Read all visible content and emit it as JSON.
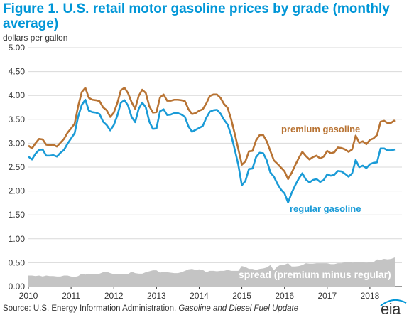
{
  "header": {
    "title": "Figure 1. U.S. retail motor gasoline prices by grade (monthly average)",
    "units": "dollars per gallon"
  },
  "footer": {
    "source_prefix": "Source: U.S. Energy Information Administration, ",
    "source_italic": "Gasoline and Diesel Fuel Update",
    "logo_text": "eia"
  },
  "colors": {
    "title": "#0096d7",
    "premium": "#b87333",
    "regular": "#1a9bd7",
    "spread": "#c4c4c4",
    "grid": "#d9d9d9"
  },
  "chart_data": {
    "type": "line",
    "x_start": "2010-01",
    "xlim": [
      "2010-01",
      "2018-10"
    ],
    "ylim": [
      0,
      5
    ],
    "yticks": [
      "0.00",
      "0.50",
      "1.00",
      "1.50",
      "2.00",
      "2.50",
      "3.00",
      "3.50",
      "4.00",
      "4.50",
      "5.00"
    ],
    "xticks": [
      "2010",
      "2011",
      "2012",
      "2013",
      "2014",
      "2015",
      "2016",
      "2017",
      "2018"
    ],
    "grid": true,
    "legend": "inline labels",
    "annotations": {
      "premium": "premium gasoline",
      "regular": "regular gasoline",
      "spread": "spread (premium minus regular)"
    },
    "series": [
      {
        "name": "premium gasoline",
        "values": [
          2.95,
          2.89,
          3.0,
          3.09,
          3.08,
          2.97,
          2.96,
          2.97,
          2.93,
          3.01,
          3.09,
          3.22,
          3.31,
          3.41,
          3.78,
          4.07,
          4.16,
          3.95,
          3.91,
          3.9,
          3.88,
          3.75,
          3.69,
          3.55,
          3.64,
          3.84,
          4.11,
          4.16,
          4.05,
          3.86,
          3.72,
          3.99,
          4.12,
          4.05,
          3.77,
          3.64,
          3.65,
          3.96,
          4.02,
          3.89,
          3.89,
          3.91,
          3.91,
          3.9,
          3.88,
          3.71,
          3.61,
          3.63,
          3.68,
          3.71,
          3.83,
          3.99,
          4.02,
          4.02,
          3.95,
          3.82,
          3.74,
          3.5,
          3.2,
          2.88,
          2.55,
          2.62,
          2.83,
          2.84,
          3.06,
          3.17,
          3.17,
          3.04,
          2.84,
          2.64,
          2.57,
          2.49,
          2.41,
          2.25,
          2.38,
          2.54,
          2.69,
          2.82,
          2.73,
          2.66,
          2.71,
          2.74,
          2.68,
          2.72,
          2.84,
          2.79,
          2.81,
          2.91,
          2.9,
          2.87,
          2.82,
          2.87,
          3.16,
          3.01,
          3.04,
          2.98,
          3.07,
          3.1,
          3.17,
          3.45,
          3.47,
          3.42,
          3.43,
          3.48
        ]
      },
      {
        "name": "regular gasoline",
        "values": [
          2.72,
          2.66,
          2.78,
          2.86,
          2.87,
          2.74,
          2.74,
          2.75,
          2.72,
          2.8,
          2.86,
          2.99,
          3.1,
          3.21,
          3.56,
          3.8,
          3.91,
          3.68,
          3.65,
          3.64,
          3.61,
          3.45,
          3.38,
          3.27,
          3.38,
          3.58,
          3.85,
          3.9,
          3.79,
          3.55,
          3.44,
          3.72,
          3.85,
          3.75,
          3.45,
          3.3,
          3.31,
          3.67,
          3.71,
          3.59,
          3.6,
          3.63,
          3.63,
          3.6,
          3.55,
          3.35,
          3.24,
          3.28,
          3.32,
          3.36,
          3.53,
          3.66,
          3.69,
          3.7,
          3.62,
          3.49,
          3.39,
          3.17,
          2.87,
          2.55,
          2.12,
          2.21,
          2.46,
          2.47,
          2.71,
          2.8,
          2.79,
          2.64,
          2.39,
          2.3,
          2.15,
          2.03,
          1.95,
          1.76,
          1.96,
          2.12,
          2.26,
          2.37,
          2.24,
          2.18,
          2.23,
          2.25,
          2.19,
          2.23,
          2.35,
          2.32,
          2.34,
          2.42,
          2.41,
          2.36,
          2.3,
          2.37,
          2.65,
          2.5,
          2.53,
          2.48,
          2.56,
          2.59,
          2.6,
          2.89,
          2.89,
          2.85,
          2.85,
          2.87
        ]
      },
      {
        "name": "spread (premium minus regular)",
        "values": [
          0.23,
          0.23,
          0.22,
          0.23,
          0.21,
          0.23,
          0.22,
          0.22,
          0.21,
          0.21,
          0.23,
          0.23,
          0.21,
          0.2,
          0.22,
          0.27,
          0.25,
          0.27,
          0.26,
          0.26,
          0.27,
          0.3,
          0.31,
          0.28,
          0.26,
          0.26,
          0.26,
          0.26,
          0.26,
          0.31,
          0.28,
          0.27,
          0.27,
          0.3,
          0.32,
          0.34,
          0.34,
          0.29,
          0.31,
          0.3,
          0.29,
          0.28,
          0.28,
          0.3,
          0.33,
          0.36,
          0.37,
          0.35,
          0.36,
          0.35,
          0.3,
          0.33,
          0.33,
          0.32,
          0.33,
          0.33,
          0.35,
          0.33,
          0.33,
          0.33,
          0.43,
          0.41,
          0.37,
          0.37,
          0.35,
          0.37,
          0.38,
          0.4,
          0.45,
          0.34,
          0.42,
          0.46,
          0.46,
          0.49,
          0.42,
          0.42,
          0.43,
          0.45,
          0.49,
          0.48,
          0.48,
          0.49,
          0.49,
          0.49,
          0.49,
          0.47,
          0.47,
          0.49,
          0.49,
          0.51,
          0.52,
          0.5,
          0.51,
          0.51,
          0.51,
          0.5,
          0.51,
          0.51,
          0.57,
          0.56,
          0.58,
          0.57,
          0.58,
          0.61
        ]
      }
    ]
  }
}
